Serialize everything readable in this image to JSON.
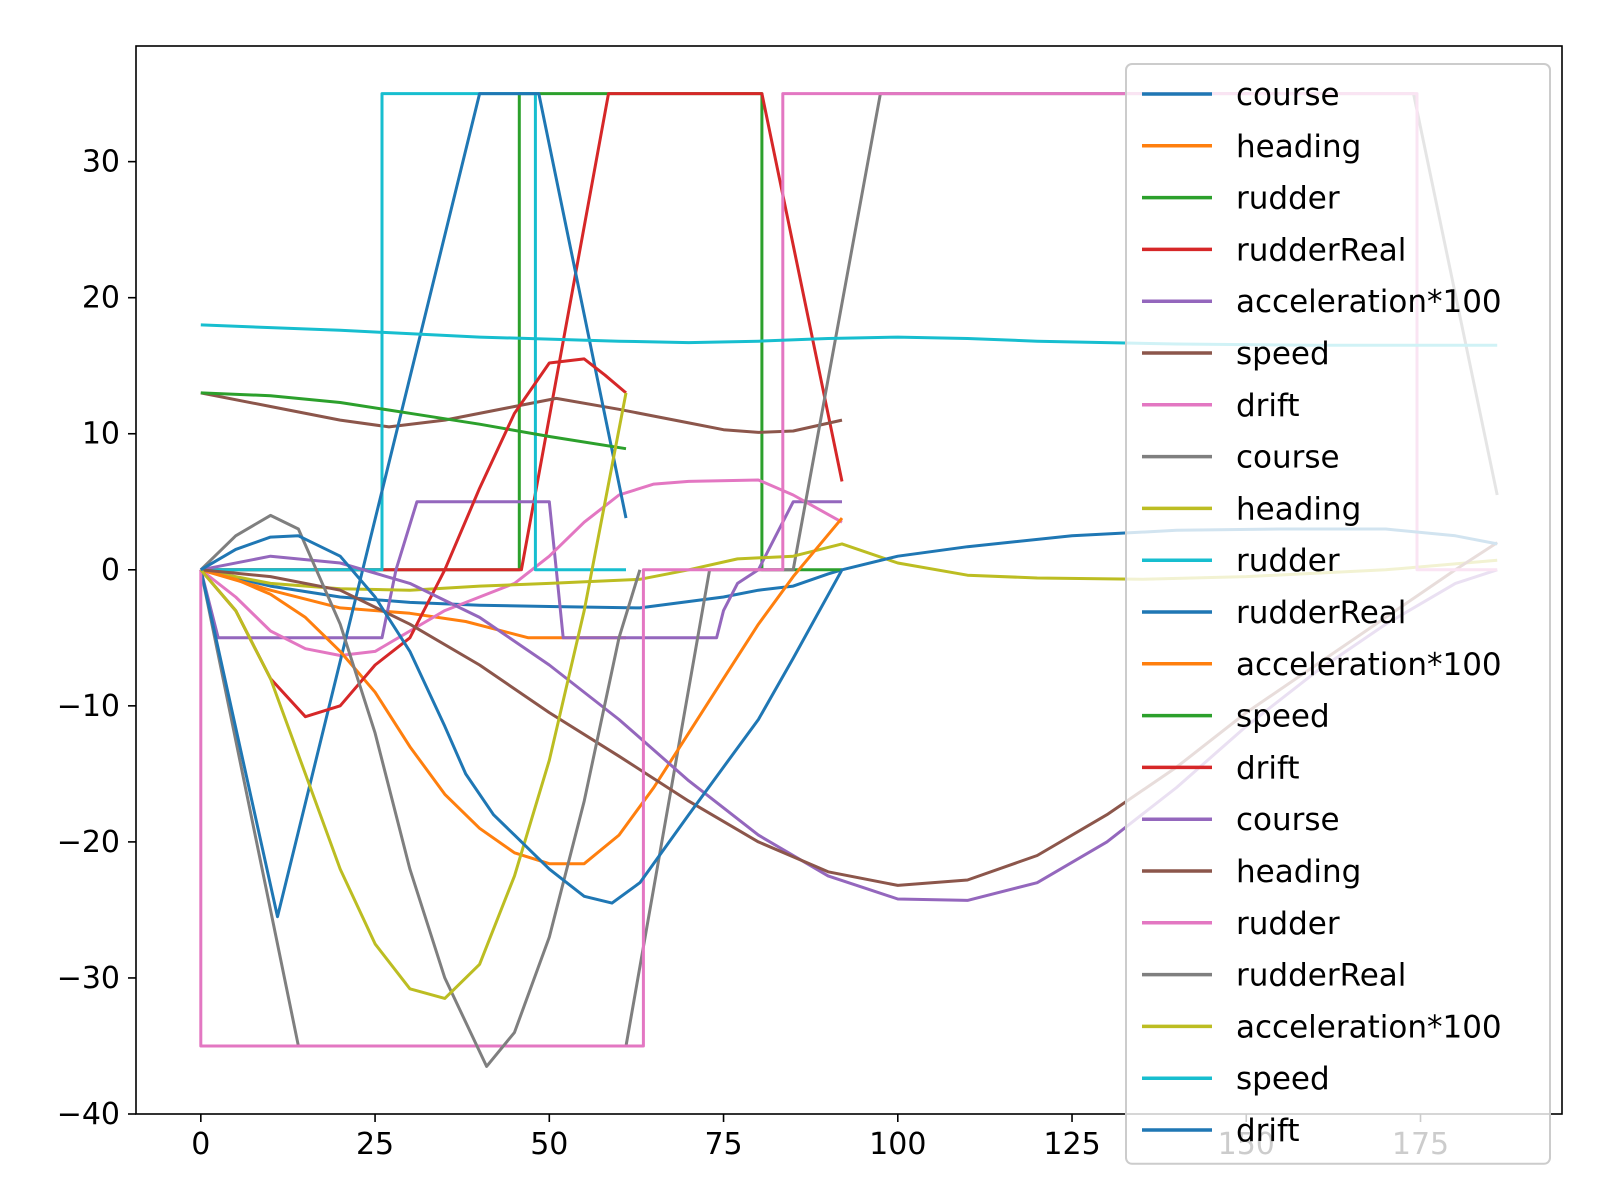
{
  "chart_data": {
    "type": "line",
    "xlim": [
      -9.3,
      195.3
    ],
    "ylim": [
      -40,
      38.5
    ],
    "x_ticks": [
      0,
      25,
      50,
      75,
      100,
      125,
      150,
      175
    ],
    "y_ticks": [
      -40,
      -30,
      -20,
      -10,
      0,
      10,
      20,
      30
    ],
    "grid": false,
    "legend_position": "right",
    "series": [
      {
        "name": "course",
        "color": "#1f77b4",
        "points": [
          [
            0,
            0
          ],
          [
            10,
            -1.2
          ],
          [
            20,
            -2
          ],
          [
            30,
            -2.4
          ],
          [
            40,
            -2.6
          ],
          [
            50,
            -2.7
          ],
          [
            63,
            -2.8
          ],
          [
            75,
            -2.0
          ],
          [
            80,
            -1.5
          ],
          [
            85,
            -1.2
          ],
          [
            90,
            -0.3
          ],
          [
            92,
            0
          ]
        ]
      },
      {
        "name": "heading",
        "color": "#ff7f0e",
        "points": [
          [
            0,
            0
          ],
          [
            10,
            -1.5
          ],
          [
            20,
            -2.8
          ],
          [
            30,
            -3.2
          ],
          [
            38,
            -3.8
          ],
          [
            47,
            -5
          ],
          [
            55,
            -5
          ],
          [
            61,
            -5
          ]
        ]
      },
      {
        "name": "rudder",
        "color": "#2ca02c",
        "points": [
          [
            0,
            0
          ],
          [
            45.7,
            0
          ],
          [
            45.7,
            35
          ],
          [
            80.5,
            35
          ],
          [
            80.5,
            0
          ],
          [
            92,
            0
          ]
        ]
      },
      {
        "name": "rudderReal",
        "color": "#d62728",
        "points": [
          [
            0,
            0
          ],
          [
            37.5,
            0
          ],
          [
            37.5,
            0
          ],
          [
            46,
            0
          ],
          [
            58.5,
            35
          ],
          [
            80.5,
            35
          ],
          [
            92,
            6.5
          ]
        ]
      },
      {
        "name": "acceleration*100",
        "color": "#9467bd",
        "points": [
          [
            0,
            0
          ],
          [
            2.5,
            -5
          ],
          [
            26,
            -5
          ],
          [
            28,
            0
          ],
          [
            31,
            5
          ],
          [
            50,
            5
          ],
          [
            51,
            0
          ],
          [
            52,
            -5
          ],
          [
            74,
            -5
          ],
          [
            75,
            -3
          ],
          [
            77,
            -1
          ],
          [
            80,
            0
          ],
          [
            82,
            2
          ],
          [
            85,
            5
          ],
          [
            92,
            5
          ]
        ]
      },
      {
        "name": "speed",
        "color": "#8c564b",
        "points": [
          [
            0,
            13
          ],
          [
            10,
            12
          ],
          [
            20,
            11
          ],
          [
            27,
            10.5
          ],
          [
            35,
            11
          ],
          [
            45,
            12
          ],
          [
            51,
            12.6
          ],
          [
            60,
            11.8
          ],
          [
            70,
            10.8
          ],
          [
            75,
            10.3
          ],
          [
            80,
            10.1
          ],
          [
            85,
            10.2
          ],
          [
            92,
            11
          ]
        ]
      },
      {
        "name": "drift",
        "color": "#e377c2",
        "points": [
          [
            0,
            0
          ],
          [
            5,
            -2
          ],
          [
            10,
            -4.5
          ],
          [
            15,
            -5.8
          ],
          [
            20,
            -6.3
          ],
          [
            25,
            -6
          ],
          [
            30,
            -4.5
          ],
          [
            35,
            -3
          ],
          [
            40,
            -2
          ],
          [
            45,
            -1
          ],
          [
            50,
            1
          ],
          [
            55,
            3.5
          ],
          [
            60,
            5.5
          ],
          [
            65,
            6.3
          ],
          [
            70,
            6.5
          ],
          [
            80,
            6.6
          ],
          [
            85,
            5.5
          ],
          [
            92,
            3.5
          ]
        ]
      },
      {
        "name": "course",
        "color": "#7f7f7f",
        "points": [
          [
            0,
            0
          ],
          [
            14,
            -35
          ],
          [
            61,
            -35
          ],
          [
            73,
            0
          ],
          [
            80,
            0
          ],
          [
            85,
            0
          ],
          [
            97.5,
            35
          ],
          [
            174,
            35
          ],
          [
            186,
            5.5
          ]
        ]
      },
      {
        "name": "heading",
        "color": "#bcbd22",
        "points": [
          [
            0,
            0
          ],
          [
            10,
            -1
          ],
          [
            20,
            -1.4
          ],
          [
            30,
            -1.5
          ],
          [
            40,
            -1.2
          ],
          [
            50,
            -1.0
          ],
          [
            63,
            -0.7
          ],
          [
            70,
            0
          ],
          [
            77,
            0.8
          ],
          [
            85,
            1.0
          ],
          [
            92,
            1.9
          ],
          [
            100,
            0.5
          ],
          [
            110,
            -0.4
          ],
          [
            120,
            -0.6
          ],
          [
            135,
            -0.7
          ],
          [
            150,
            -0.5
          ],
          [
            170,
            0
          ],
          [
            186,
            0.7
          ]
        ]
      },
      {
        "name": "rudder",
        "color": "#17becf",
        "points": [
          [
            0,
            0
          ],
          [
            26,
            0
          ],
          [
            26,
            35
          ],
          [
            48,
            35
          ],
          [
            48,
            0
          ],
          [
            61,
            0
          ]
        ]
      },
      {
        "name": "rudderReal",
        "color": "#1f77b4",
        "points": [
          [
            0,
            0
          ],
          [
            11,
            -25.5
          ],
          [
            40,
            35
          ],
          [
            48.5,
            35
          ],
          [
            61,
            3.8
          ]
        ]
      },
      {
        "name": "acceleration*100",
        "color": "#ff7f0e",
        "points": [
          [
            0,
            0
          ],
          [
            5,
            -0.7
          ],
          [
            10,
            -1.8
          ],
          [
            15,
            -3.5
          ],
          [
            20,
            -6
          ],
          [
            25,
            -9
          ],
          [
            30,
            -13
          ],
          [
            35,
            -16.5
          ],
          [
            40,
            -19
          ],
          [
            45,
            -20.8
          ],
          [
            50,
            -21.6
          ],
          [
            55,
            -21.6
          ],
          [
            60,
            -19.5
          ],
          [
            65,
            -16
          ],
          [
            70,
            -12
          ],
          [
            75,
            -8
          ],
          [
            80,
            -4
          ],
          [
            85,
            -0.5
          ],
          [
            92,
            3.8
          ]
        ]
      },
      {
        "name": "speed",
        "color": "#2ca02c",
        "points": [
          [
            0,
            13
          ],
          [
            10,
            12.8
          ],
          [
            20,
            12.3
          ],
          [
            30,
            11.5
          ],
          [
            40,
            10.7
          ],
          [
            50,
            9.8
          ],
          [
            61,
            8.9
          ]
        ]
      },
      {
        "name": "drift",
        "color": "#d62728",
        "points": [
          [
            0,
            0
          ],
          [
            5,
            -3
          ],
          [
            10,
            -8
          ],
          [
            15,
            -10.8
          ],
          [
            20,
            -10
          ],
          [
            25,
            -7
          ],
          [
            30,
            -5
          ],
          [
            35,
            0
          ],
          [
            40,
            6
          ],
          [
            45,
            11.5
          ],
          [
            50,
            15.2
          ],
          [
            55,
            15.5
          ],
          [
            58,
            14.3
          ],
          [
            61,
            13
          ]
        ]
      },
      {
        "name": "course",
        "color": "#9467bd",
        "points": [
          [
            0,
            0
          ],
          [
            10,
            1
          ],
          [
            20,
            0.5
          ],
          [
            30,
            -1
          ],
          [
            40,
            -3.5
          ],
          [
            50,
            -7
          ],
          [
            60,
            -11
          ],
          [
            70,
            -15.5
          ],
          [
            80,
            -19.5
          ],
          [
            90,
            -22.5
          ],
          [
            100,
            -24.2
          ],
          [
            110,
            -24.3
          ],
          [
            120,
            -23
          ],
          [
            130,
            -20
          ],
          [
            140,
            -16
          ],
          [
            150,
            -11.5
          ],
          [
            160,
            -7.5
          ],
          [
            170,
            -4
          ],
          [
            180,
            -1
          ],
          [
            186,
            0
          ]
        ]
      },
      {
        "name": "heading",
        "color": "#8c564b",
        "points": [
          [
            0,
            0
          ],
          [
            10,
            -0.5
          ],
          [
            20,
            -1.5
          ],
          [
            30,
            -4
          ],
          [
            40,
            -7
          ],
          [
            50,
            -10.5
          ],
          [
            60,
            -13.7
          ],
          [
            70,
            -17
          ],
          [
            80,
            -20
          ],
          [
            90,
            -22.2
          ],
          [
            100,
            -23.2
          ],
          [
            110,
            -22.8
          ],
          [
            120,
            -21
          ],
          [
            130,
            -18
          ],
          [
            140,
            -14.5
          ],
          [
            150,
            -10.5
          ],
          [
            160,
            -7
          ],
          [
            170,
            -3.5
          ],
          [
            180,
            0
          ],
          [
            186,
            2
          ]
        ]
      },
      {
        "name": "rudder",
        "color": "#e377c2",
        "points": [
          [
            0,
            0
          ],
          [
            0,
            -35
          ],
          [
            14,
            -35
          ],
          [
            14,
            -35
          ],
          [
            63.5,
            -35
          ],
          [
            63.5,
            0
          ],
          [
            83.5,
            0
          ],
          [
            83.5,
            35
          ],
          [
            174.5,
            35
          ],
          [
            174.5,
            0
          ],
          [
            186,
            0
          ]
        ]
      },
      {
        "name": "rudderReal",
        "color": "#7f7f7f",
        "points": [
          [
            0,
            0
          ],
          [
            5,
            2.5
          ],
          [
            10,
            4
          ],
          [
            14,
            3
          ],
          [
            20,
            -4
          ],
          [
            25,
            -12
          ],
          [
            30,
            -22
          ],
          [
            35,
            -30
          ],
          [
            41,
            -36.5
          ],
          [
            45,
            -34
          ],
          [
            50,
            -27
          ],
          [
            55,
            -17
          ],
          [
            60,
            -5
          ],
          [
            63,
            0
          ]
        ]
      },
      {
        "name": "acceleration*100",
        "color": "#bcbd22",
        "points": [
          [
            0,
            0
          ],
          [
            5,
            -3
          ],
          [
            10,
            -8
          ],
          [
            15,
            -15
          ],
          [
            20,
            -22
          ],
          [
            25,
            -27.5
          ],
          [
            30,
            -30.8
          ],
          [
            35,
            -31.5
          ],
          [
            40,
            -29
          ],
          [
            45,
            -22.5
          ],
          [
            50,
            -14
          ],
          [
            55,
            -3
          ],
          [
            61,
            13
          ]
        ]
      },
      {
        "name": "speed",
        "color": "#17becf",
        "points": [
          [
            0,
            18
          ],
          [
            20,
            17.6
          ],
          [
            40,
            17.1
          ],
          [
            60,
            16.8
          ],
          [
            70,
            16.7
          ],
          [
            80,
            16.8
          ],
          [
            90,
            17.0
          ],
          [
            100,
            17.1
          ],
          [
            110,
            17.0
          ],
          [
            120,
            16.8
          ],
          [
            140,
            16.6
          ],
          [
            160,
            16.5
          ],
          [
            186,
            16.5
          ]
        ]
      },
      {
        "name": "drift",
        "color": "#1f77b4",
        "points": [
          [
            0,
            0
          ],
          [
            5,
            1.5
          ],
          [
            10,
            2.4
          ],
          [
            14,
            2.5
          ],
          [
            20,
            1
          ],
          [
            25,
            -2
          ],
          [
            30,
            -6
          ],
          [
            35,
            -11.5
          ],
          [
            38,
            -15
          ],
          [
            42,
            -18
          ],
          [
            45,
            -19.5
          ],
          [
            50,
            -22
          ],
          [
            55,
            -24
          ],
          [
            59,
            -24.5
          ],
          [
            63,
            -23
          ],
          [
            70,
            -18
          ],
          [
            75,
            -14.5
          ],
          [
            80,
            -11
          ],
          [
            85,
            -6.5
          ],
          [
            92,
            0
          ],
          [
            100,
            1
          ],
          [
            110,
            1.7
          ],
          [
            125,
            2.5
          ],
          [
            140,
            2.9
          ],
          [
            155,
            3.0
          ],
          [
            170,
            3.0
          ],
          [
            180,
            2.5
          ],
          [
            186,
            1.9
          ]
        ]
      }
    ]
  }
}
